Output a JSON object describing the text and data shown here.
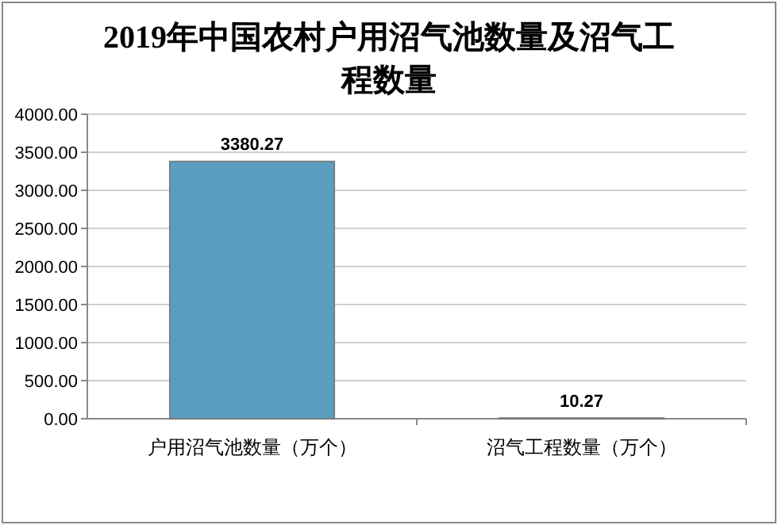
{
  "chart_data": {
    "type": "bar",
    "title": "2019年中国农村户用沼气池数量及沼气工程数量",
    "categories": [
      "户用沼气池数量（万个）",
      "沼气工程数量（万个）"
    ],
    "values": [
      3380.27,
      10.27
    ],
    "colors": [
      "#5b9dc0",
      "#5b9dc0"
    ],
    "ylim": [
      0,
      4000
    ],
    "yticks": [
      {
        "value": 0,
        "label": "0.00"
      },
      {
        "value": 500,
        "label": "500.00"
      },
      {
        "value": 1000,
        "label": "1000.00"
      },
      {
        "value": 1500,
        "label": "1500.00"
      },
      {
        "value": 2000,
        "label": "2000.00"
      },
      {
        "value": 2500,
        "label": "2500.00"
      },
      {
        "value": 3000,
        "label": "3000.00"
      },
      {
        "value": 3500,
        "label": "3500.00"
      },
      {
        "value": 4000,
        "label": "4000.00"
      }
    ],
    "grid": "y",
    "data_labels": true
  }
}
